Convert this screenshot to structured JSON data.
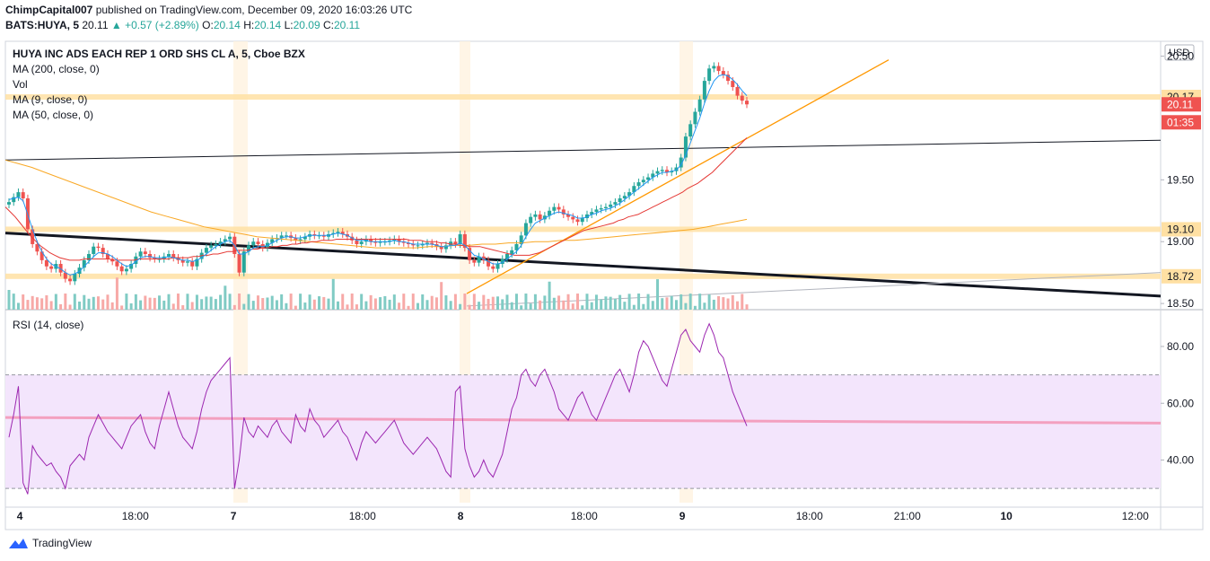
{
  "header": {
    "publisher": "ChimpCapital007",
    "published_text": " published on TradingView.com, December 09, 2020 16:03:26 UTC",
    "symbol": "BATS:HUYA, 5",
    "last": "20.11",
    "arrow": "▲",
    "change": "+0.57 (+2.89%)",
    "o_label": "O:",
    "o": "20.14",
    "h_label": "H:",
    "h": "20.14",
    "l_label": "L:",
    "l": "20.09",
    "c_label": "C:",
    "c": "20.11"
  },
  "legend": {
    "title": "HUYA INC ADS EACH REP 1 ORD SHS CL A, 5, Cboe BZX",
    "ma200": "MA (200, close, 0)",
    "vol": "Vol",
    "ma9": "MA (9, close, 0)",
    "ma50": "MA (50, close, 0)",
    "rsi": "RSI (14, close)"
  },
  "branding": {
    "logo_text": "TradingView",
    "logo_icon": "tradingview-cloud-icon"
  },
  "colors": {
    "up": "#26a69a",
    "down": "#ef5350",
    "ma9": "#2196f3",
    "ma50": "#e53935",
    "ma200": "#f9a825",
    "rsi": "#9c27b0",
    "rsi_band": "#f3e5fc",
    "hline": "#ffe0a3",
    "trend_orange": "#ff9800"
  },
  "chart_data": [
    {
      "type": "candlestick",
      "currency": "USD",
      "ylim": [
        18.45,
        20.62
      ],
      "y_ticks": [
        "20.50",
        "19.50",
        "19.00",
        "18.50"
      ],
      "x_ticks": [
        "4",
        "18:00",
        "7",
        "18:00",
        "8",
        "18:00",
        "9",
        "18:00",
        "21:00",
        "10",
        "12:00"
      ],
      "price_labels": [
        {
          "value": "20.17",
          "kind": "hline"
        },
        {
          "value": "20.11",
          "kind": "last"
        },
        {
          "value": "01:35",
          "kind": "countdown"
        },
        {
          "value": "19.10",
          "kind": "hline"
        },
        {
          "value": "18.72",
          "kind": "hline"
        }
      ],
      "horizontal_levels": [
        20.17,
        19.1,
        18.72
      ],
      "close_series": [
        19.32,
        19.36,
        19.4,
        19.35,
        19.1,
        18.98,
        18.92,
        18.85,
        18.8,
        18.78,
        18.82,
        18.75,
        18.7,
        18.68,
        18.74,
        18.79,
        18.85,
        18.9,
        18.96,
        18.95,
        18.9,
        18.86,
        18.84,
        18.8,
        18.76,
        18.78,
        18.82,
        18.88,
        18.92,
        18.9,
        18.87,
        18.86,
        18.86,
        18.88,
        18.9,
        18.87,
        18.85,
        18.83,
        18.84,
        18.8,
        18.86,
        18.91,
        18.95,
        18.97,
        18.98,
        19.0,
        19.02,
        19.04,
        18.9,
        18.75,
        18.92,
        18.97,
        19.0,
        18.98,
        18.95,
        18.99,
        19.02,
        19.03,
        19.05,
        19.05,
        19.03,
        19.01,
        19.02,
        19.04,
        19.06,
        19.05,
        19.05,
        19.04,
        19.06,
        19.07,
        19.08,
        19.06,
        19.04,
        19.01,
        18.98,
        19.0,
        19.02,
        19.0,
        18.99,
        19.0,
        19.0,
        19.01,
        19.02,
        19.0,
        18.99,
        18.98,
        18.97,
        18.97,
        18.98,
        18.99,
        18.98,
        18.96,
        18.94,
        18.97,
        19.0,
        18.98,
        19.06,
        18.95,
        18.85,
        18.83,
        18.88,
        18.85,
        18.8,
        18.78,
        18.82,
        18.86,
        18.9,
        18.93,
        18.98,
        19.05,
        19.15,
        19.2,
        19.22,
        19.18,
        19.21,
        19.25,
        19.28,
        19.26,
        19.22,
        19.2,
        19.18,
        19.16,
        19.19,
        19.22,
        19.24,
        19.26,
        19.27,
        19.28,
        19.3,
        19.32,
        19.35,
        19.37,
        19.4,
        19.45,
        19.48,
        19.5,
        19.52,
        19.55,
        19.57,
        19.58,
        19.56,
        19.57,
        19.6,
        19.68,
        19.85,
        19.95,
        20.05,
        20.15,
        20.3,
        20.4,
        20.42,
        20.38,
        20.35,
        20.3,
        20.25,
        20.18,
        20.14,
        20.11
      ],
      "ma9_series": [
        19.34,
        19.35,
        19.36,
        19.33,
        19.22,
        19.1,
        19.0,
        18.92,
        18.86,
        18.82,
        18.8,
        18.78,
        18.75,
        18.73,
        18.74,
        18.76,
        18.8,
        18.84,
        18.88,
        18.91,
        18.91,
        18.9,
        18.88,
        18.85,
        18.82,
        18.8,
        18.81,
        18.84,
        18.87,
        18.88,
        18.88,
        18.87,
        18.87,
        18.87,
        18.88,
        18.87,
        18.86,
        18.85,
        18.85,
        18.84,
        18.85,
        18.87,
        18.9,
        18.93,
        18.96,
        18.98,
        19.0,
        19.01,
        18.97,
        18.9,
        18.9,
        18.92,
        18.95,
        18.96,
        18.96,
        18.97,
        18.99,
        19.01,
        19.03,
        19.04,
        19.04,
        19.03,
        19.03,
        19.04,
        19.05,
        19.05,
        19.05,
        19.05,
        19.05,
        19.06,
        19.07,
        19.06,
        19.05,
        19.03,
        19.01,
        19.01,
        19.01,
        19.0,
        19.0,
        19.0,
        19.0,
        19.0,
        19.01,
        19.0,
        19.0,
        18.99,
        18.98,
        18.98,
        18.98,
        18.98,
        18.98,
        18.97,
        18.96,
        18.96,
        18.97,
        18.97,
        18.99,
        18.97,
        18.93,
        18.89,
        18.88,
        18.86,
        18.84,
        18.82,
        18.82,
        18.83,
        18.86,
        18.89,
        18.92,
        18.97,
        19.04,
        19.1,
        19.15,
        19.17,
        19.19,
        19.21,
        19.23,
        19.24,
        19.23,
        19.22,
        19.21,
        19.19,
        19.19,
        19.2,
        19.22,
        19.23,
        19.25,
        19.26,
        19.27,
        19.29,
        19.31,
        19.34,
        19.37,
        19.4,
        19.43,
        19.46,
        19.49,
        19.52,
        19.54,
        19.56,
        19.56,
        19.57,
        19.58,
        19.62,
        19.7,
        19.8,
        19.9,
        20.0,
        20.12,
        20.22,
        20.3,
        20.34,
        20.35,
        20.34,
        20.31,
        20.27,
        20.22,
        20.18
      ],
      "ma50_series": [
        19.28,
        19.24,
        19.2,
        19.15,
        19.1,
        19.05,
        19.01,
        18.97,
        18.94,
        18.91,
        18.89,
        18.87,
        18.86,
        18.85,
        18.85,
        18.85,
        18.86,
        18.86,
        18.86,
        18.86,
        18.86,
        18.86,
        18.85,
        18.85,
        18.85,
        18.85,
        18.85,
        18.86,
        18.86,
        18.86,
        18.86,
        18.86,
        18.86,
        18.86,
        18.87,
        18.87,
        18.87,
        18.87,
        18.88,
        18.88,
        18.89,
        18.89,
        18.9,
        18.9,
        18.91,
        18.92,
        18.92,
        18.93,
        18.93,
        18.93,
        18.94,
        18.94,
        18.95,
        18.95,
        18.96,
        18.96,
        18.97,
        18.97,
        18.98,
        18.98,
        18.99,
        18.99,
        19.0,
        19.0,
        19.01,
        19.01,
        19.01,
        19.02,
        19.02,
        19.02,
        19.02,
        19.02,
        19.02,
        19.02,
        19.02,
        19.02,
        19.02,
        19.02,
        19.02,
        19.02,
        19.02,
        19.02,
        19.01,
        19.01,
        19.01,
        19.0,
        19.0,
        19.0,
        18.99,
        18.99,
        18.98,
        18.98,
        18.97,
        18.97,
        18.96,
        18.96,
        18.96,
        18.95,
        18.94,
        18.93,
        18.92,
        18.91,
        18.9,
        18.89,
        18.89,
        18.89,
        18.89,
        18.9,
        18.91,
        18.93,
        18.95,
        18.97,
        18.99,
        19.01,
        19.03,
        19.05,
        19.07,
        19.09,
        19.1,
        19.11,
        19.12,
        19.13,
        19.14,
        19.15,
        19.17,
        19.18,
        19.2,
        19.21,
        19.22,
        19.24,
        19.26,
        19.28,
        19.3,
        19.32,
        19.34,
        19.36,
        19.38,
        19.4,
        19.43,
        19.45,
        19.47,
        19.5,
        19.53,
        19.56,
        19.6,
        19.64,
        19.68,
        19.72,
        19.76,
        19.8,
        19.84
      ],
      "ma200_series": [
        19.66,
        19.63,
        19.6,
        19.56,
        19.52,
        19.48,
        19.44,
        19.4,
        19.36,
        19.32,
        19.28,
        19.24,
        19.21,
        19.18,
        19.15,
        19.12,
        19.1,
        19.08,
        19.06,
        19.04,
        19.03,
        19.02,
        19.01,
        19.0,
        18.99,
        18.98,
        18.97,
        18.96,
        18.95,
        18.95,
        18.95,
        18.95,
        18.96,
        18.96,
        18.97,
        18.97,
        18.98,
        18.98,
        18.99,
        18.99,
        19.0,
        19.0,
        19.01,
        19.01,
        19.02,
        19.03,
        19.04,
        19.05,
        19.06,
        19.07,
        19.08,
        19.09,
        19.1,
        19.12,
        19.14,
        19.16,
        19.18
      ],
      "volume_max": 1
    },
    {
      "type": "line",
      "name": "RSI (14, close)",
      "ylim": [
        25,
        92
      ],
      "y_ticks": [
        "80.00",
        "60.00",
        "40.00"
      ],
      "band": [
        30,
        70
      ],
      "signal_level": 54,
      "values": [
        48,
        56,
        66,
        32,
        28,
        45,
        42,
        40,
        38,
        39,
        36,
        34,
        30,
        38,
        40,
        42,
        40,
        48,
        52,
        56,
        53,
        50,
        48,
        46,
        44,
        48,
        52,
        54,
        56,
        50,
        46,
        44,
        52,
        58,
        64,
        58,
        52,
        48,
        46,
        44,
        50,
        58,
        64,
        68,
        70,
        72,
        74,
        76,
        30,
        40,
        55,
        50,
        48,
        52,
        50,
        48,
        52,
        54,
        50,
        48,
        46,
        56,
        52,
        50,
        58,
        54,
        52,
        48,
        50,
        52,
        54,
        50,
        48,
        44,
        40,
        46,
        50,
        48,
        46,
        48,
        50,
        52,
        54,
        50,
        46,
        44,
        42,
        44,
        46,
        48,
        46,
        44,
        40,
        36,
        34,
        64,
        66,
        44,
        38,
        34,
        36,
        40,
        36,
        34,
        38,
        42,
        50,
        58,
        62,
        70,
        72,
        68,
        66,
        70,
        72,
        68,
        64,
        58,
        56,
        54,
        58,
        62,
        64,
        60,
        56,
        54,
        58,
        62,
        66,
        70,
        72,
        68,
        64,
        70,
        78,
        82,
        80,
        76,
        72,
        68,
        66,
        72,
        78,
        84,
        86,
        82,
        80,
        78,
        84,
        88,
        84,
        78,
        76,
        70,
        64,
        60,
        56,
        52
      ]
    }
  ]
}
